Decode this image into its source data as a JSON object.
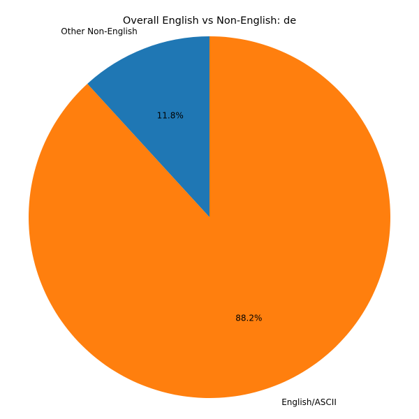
{
  "chart_data": {
    "type": "pie",
    "title": "Overall English vs Non-English: de",
    "start_angle_deg": 90,
    "direction": "counterclockwise",
    "slices": [
      {
        "label": "Other Non-English",
        "value": 11.8,
        "percent_label": "11.8%",
        "color": "#1f77b4"
      },
      {
        "label": "English/ASCII",
        "value": 88.2,
        "percent_label": "88.2%",
        "color": "#ff7f0e"
      }
    ]
  }
}
